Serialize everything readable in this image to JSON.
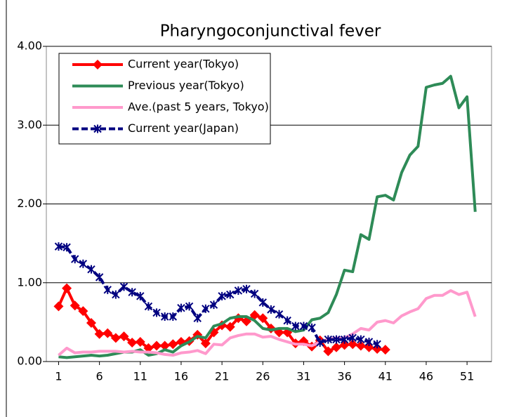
{
  "chart_data": {
    "type": "line",
    "title": "Pharyngoconjunctival fever",
    "x": [
      1,
      2,
      3,
      4,
      5,
      6,
      7,
      8,
      9,
      10,
      11,
      12,
      13,
      14,
      15,
      16,
      17,
      18,
      19,
      20,
      21,
      22,
      23,
      24,
      25,
      26,
      27,
      28,
      29,
      30,
      31,
      32,
      33,
      34,
      35,
      36,
      37,
      38,
      39,
      40,
      41,
      42,
      43,
      44,
      45,
      46,
      47,
      48,
      49,
      50,
      51,
      52
    ],
    "xlim": [
      -0.5,
      54
    ],
    "xticks": [
      1,
      6,
      11,
      16,
      21,
      26,
      31,
      36,
      41,
      46,
      51
    ],
    "ylim": [
      0,
      4
    ],
    "yticks": [
      {
        "value": 0,
        "label": "0.00"
      },
      {
        "value": 1,
        "label": "1.00"
      },
      {
        "value": 2,
        "label": "2.00"
      },
      {
        "value": 3,
        "label": "3.00"
      },
      {
        "value": 4,
        "label": "4.00"
      }
    ],
    "grid": true,
    "legend": "upper left",
    "series": [
      {
        "name": "Current year(Tokyo)",
        "color": "#ff0000",
        "marker": "diamond",
        "values": [
          0.7,
          0.93,
          0.71,
          0.64,
          0.49,
          0.35,
          0.36,
          0.3,
          0.32,
          0.24,
          0.25,
          0.17,
          0.2,
          0.2,
          0.22,
          0.25,
          0.26,
          0.34,
          0.23,
          0.37,
          0.46,
          0.44,
          0.55,
          0.51,
          0.59,
          0.55,
          0.42,
          0.37,
          0.37,
          0.23,
          0.26,
          0.19,
          0.27,
          0.13,
          0.18,
          0.21,
          0.22,
          0.2,
          0.18,
          0.16,
          0.15,
          null,
          null,
          null,
          null,
          null,
          null,
          null,
          null,
          null,
          null,
          null
        ]
      },
      {
        "name": "Previous year(Tokyo)",
        "color": "#2e8b57",
        "marker": "none",
        "values": [
          0.06,
          0.05,
          0.06,
          0.07,
          0.08,
          0.07,
          0.08,
          0.1,
          0.12,
          0.12,
          0.15,
          0.08,
          0.1,
          0.15,
          0.12,
          0.2,
          0.25,
          0.32,
          0.3,
          0.45,
          0.48,
          0.55,
          0.57,
          0.57,
          0.52,
          0.42,
          0.4,
          0.42,
          0.42,
          0.38,
          0.4,
          0.53,
          0.55,
          0.62,
          0.85,
          1.16,
          1.14,
          1.61,
          1.55,
          2.09,
          2.11,
          2.05,
          2.4,
          2.62,
          2.73,
          3.48,
          3.51,
          3.53,
          3.62,
          3.22,
          3.36,
          1.9
        ]
      },
      {
        "name": "Ave.(past 5 years, Tokyo)",
        "color": "#ff99cc",
        "marker": "none",
        "values": [
          0.08,
          0.17,
          0.11,
          0.12,
          0.12,
          0.13,
          0.13,
          0.13,
          0.12,
          0.13,
          0.12,
          0.12,
          0.11,
          0.09,
          0.08,
          0.11,
          0.12,
          0.14,
          0.1,
          0.22,
          0.21,
          0.3,
          0.33,
          0.35,
          0.35,
          0.31,
          0.32,
          0.28,
          0.25,
          0.22,
          0.22,
          0.2,
          0.25,
          0.28,
          0.3,
          0.3,
          0.35,
          0.42,
          0.4,
          0.5,
          0.52,
          0.49,
          0.58,
          0.63,
          0.67,
          0.8,
          0.84,
          0.84,
          0.9,
          0.85,
          0.88,
          0.57
        ]
      },
      {
        "name": "Current year(Japan)",
        "color": "#000080",
        "marker": "star",
        "dash": true,
        "values": [
          1.46,
          1.45,
          1.3,
          1.24,
          1.17,
          1.07,
          0.91,
          0.85,
          0.95,
          0.88,
          0.83,
          0.7,
          0.62,
          0.57,
          0.57,
          0.68,
          0.7,
          0.55,
          0.67,
          0.72,
          0.83,
          0.85,
          0.9,
          0.92,
          0.86,
          0.75,
          0.66,
          0.6,
          0.52,
          0.45,
          0.45,
          0.43,
          0.24,
          0.28,
          0.28,
          0.28,
          0.3,
          0.28,
          0.25,
          0.22,
          null,
          null,
          null,
          null,
          null,
          null,
          null,
          null,
          null,
          null,
          null,
          null
        ]
      }
    ]
  }
}
